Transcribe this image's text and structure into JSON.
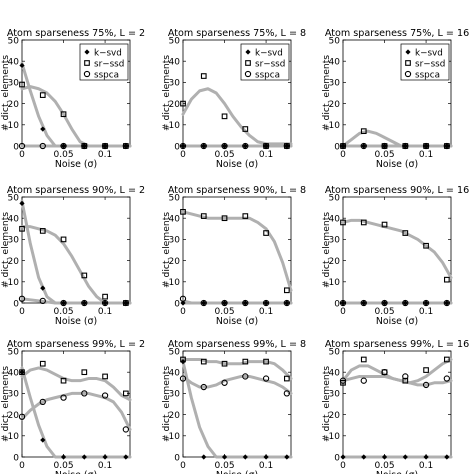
{
  "chart_data": [
    {
      "type": "line",
      "title": "Atom sparseness 75%, L = 2",
      "xlabel": "Noise (σ)",
      "ylabel": "# dict. elements",
      "xlim": [
        0,
        0.13
      ],
      "ylim": [
        0,
        50
      ],
      "grid": false,
      "legend_position": "top-right",
      "x": [
        0,
        0.025,
        0.05,
        0.075,
        0.1,
        0.125
      ],
      "series": [
        {
          "name": "k−svd",
          "marker": "diamond",
          "values": [
            38,
            8,
            0,
            0,
            0,
            0
          ],
          "fit": [
            39,
            26,
            14,
            5,
            0,
            0,
            0,
            0,
            0,
            0,
            0,
            0,
            0,
            0
          ]
        },
        {
          "name": "sr−ssd",
          "marker": "square",
          "values": [
            29,
            24,
            15,
            0,
            0,
            0
          ],
          "fit": [
            27,
            28,
            27,
            25,
            21,
            15,
            8,
            2,
            0,
            0,
            0,
            0,
            0,
            0
          ]
        },
        {
          "name": "sspca",
          "marker": "circle",
          "values": [
            0,
            0,
            0,
            0,
            0,
            0
          ],
          "fit": [
            0,
            0,
            0,
            0,
            0,
            0,
            0,
            0,
            0,
            0,
            0,
            0,
            0,
            0
          ]
        }
      ]
    },
    {
      "type": "line",
      "title": "Atom sparseness 75%, L = 8",
      "xlabel": "Noise (σ)",
      "ylabel": "# dict. elements",
      "xlim": [
        0,
        0.13
      ],
      "ylim": [
        0,
        50
      ],
      "grid": false,
      "legend_position": "top-right",
      "x": [
        0,
        0.025,
        0.05,
        0.075,
        0.1,
        0.125
      ],
      "series": [
        {
          "name": "k−svd",
          "marker": "diamond",
          "values": [
            0,
            0,
            0,
            0,
            0,
            0
          ],
          "fit": [
            0,
            0,
            0,
            0,
            0,
            0,
            0,
            0,
            0,
            0,
            0,
            0,
            0,
            0
          ]
        },
        {
          "name": "sr−ssd",
          "marker": "square",
          "values": [
            20,
            33,
            14,
            8,
            0,
            0
          ],
          "fit": [
            15,
            22,
            26,
            27,
            25,
            20,
            14,
            9,
            5,
            2,
            1,
            1,
            1,
            1
          ]
        },
        {
          "name": "sspca",
          "marker": "circle",
          "values": [
            0,
            0,
            0,
            0,
            0,
            0
          ],
          "fit": [
            0,
            0,
            0,
            0,
            0,
            0,
            0,
            0,
            0,
            0,
            0,
            0,
            0,
            0
          ]
        }
      ]
    },
    {
      "type": "line",
      "title": "Atom sparseness 75%, L = 16",
      "xlabel": "Noise (σ)",
      "ylabel": "# dict. elements",
      "xlim": [
        0,
        0.13
      ],
      "ylim": [
        0,
        50
      ],
      "grid": false,
      "legend_position": "top-right",
      "x": [
        0,
        0.025,
        0.05,
        0.075,
        0.1,
        0.125
      ],
      "series": [
        {
          "name": "k−svd",
          "marker": "diamond",
          "values": [
            0,
            0,
            0,
            0,
            0,
            0
          ],
          "fit": [
            0,
            0,
            0,
            0,
            0,
            0,
            0,
            0,
            0,
            0,
            0,
            0,
            0,
            0
          ]
        },
        {
          "name": "sr−ssd",
          "marker": "square",
          "values": [
            0,
            7,
            0,
            0,
            0,
            0
          ],
          "fit": [
            0,
            3,
            6,
            7,
            6,
            4,
            2,
            0,
            0,
            0,
            0,
            0,
            0,
            0
          ]
        },
        {
          "name": "sspca",
          "marker": "circle",
          "values": [
            0,
            0,
            0,
            0,
            0,
            0
          ],
          "fit": [
            0,
            0,
            0,
            0,
            0,
            0,
            0,
            0,
            0,
            0,
            0,
            0,
            0,
            0
          ]
        }
      ]
    },
    {
      "type": "line",
      "title": "Atom sparseness 90%, L = 2",
      "xlabel": "Noise (σ)",
      "ylabel": "# dict. elements",
      "xlim": [
        0,
        0.13
      ],
      "ylim": [
        0,
        50
      ],
      "grid": false,
      "x": [
        0,
        0.025,
        0.05,
        0.075,
        0.1,
        0.125
      ],
      "series": [
        {
          "name": "k−svd",
          "marker": "diamond",
          "values": [
            47,
            7,
            0,
            0,
            0,
            0
          ],
          "fit": [
            48,
            28,
            12,
            3,
            0,
            0,
            0,
            0,
            0,
            0,
            0,
            0,
            0,
            0
          ]
        },
        {
          "name": "sr−ssd",
          "marker": "square",
          "values": [
            35,
            34,
            30,
            13,
            3,
            0
          ],
          "fit": [
            36,
            36,
            35,
            34,
            32,
            28,
            22,
            15,
            8,
            3,
            0,
            0,
            0,
            0
          ]
        },
        {
          "name": "sspca",
          "marker": "circle",
          "values": [
            2,
            1,
            0,
            0,
            0,
            0
          ],
          "fit": [
            2,
            1.5,
            1,
            0.5,
            0,
            0,
            0,
            0,
            0,
            0,
            0,
            0,
            0,
            0
          ]
        }
      ]
    },
    {
      "type": "line",
      "title": "Atom sparseness 90%, L = 8",
      "xlabel": "Noise (σ)",
      "ylabel": "# dict. elements",
      "xlim": [
        0,
        0.13
      ],
      "ylim": [
        0,
        50
      ],
      "grid": false,
      "x": [
        0,
        0.025,
        0.05,
        0.075,
        0.1,
        0.125
      ],
      "series": [
        {
          "name": "k−svd",
          "marker": "diamond",
          "values": [
            0,
            0,
            0,
            0,
            0,
            0
          ],
          "fit": [
            0,
            0,
            0,
            0,
            0,
            0,
            0,
            0,
            0,
            0,
            0,
            0,
            0,
            0
          ]
        },
        {
          "name": "sr−ssd",
          "marker": "square",
          "values": [
            43,
            41,
            40,
            41,
            33,
            6
          ],
          "fit": [
            43,
            42,
            41,
            40,
            40,
            40,
            40,
            40,
            40,
            38,
            35,
            29,
            19,
            6
          ]
        },
        {
          "name": "sspca",
          "marker": "circle",
          "values": [
            2,
            0,
            0,
            0,
            0,
            0
          ],
          "fit": [
            1,
            0,
            0,
            0,
            0,
            0,
            0,
            0,
            0,
            0,
            0,
            0,
            0,
            0
          ]
        }
      ]
    },
    {
      "type": "line",
      "title": "Atom sparseness 90%, L = 16",
      "xlabel": "Noise (σ)",
      "ylabel": "# dict. elements",
      "xlim": [
        0,
        0.13
      ],
      "ylim": [
        0,
        50
      ],
      "grid": false,
      "x": [
        0,
        0.025,
        0.05,
        0.075,
        0.1,
        0.125
      ],
      "series": [
        {
          "name": "k−svd",
          "marker": "diamond",
          "values": [
            0,
            0,
            0,
            0,
            0,
            0
          ],
          "fit": [
            0,
            0,
            0,
            0,
            0,
            0,
            0,
            0,
            0,
            0,
            0,
            0,
            0,
            0
          ]
        },
        {
          "name": "sr−ssd",
          "marker": "square",
          "values": [
            38,
            38,
            37,
            33,
            27,
            11
          ],
          "fit": [
            38,
            39,
            39,
            38,
            37,
            36,
            35,
            34,
            32,
            30,
            27,
            24,
            19,
            12
          ]
        },
        {
          "name": "sspca",
          "marker": "circle",
          "values": [
            0,
            0,
            0,
            0,
            0,
            0
          ],
          "fit": [
            0,
            0,
            0,
            0,
            0,
            0,
            0,
            0,
            0,
            0,
            0,
            0,
            0,
            0
          ]
        }
      ]
    },
    {
      "type": "line",
      "title": "Atom sparseness 99%, L = 2",
      "xlabel": "Noise (σ)",
      "ylabel": "# dict. elements",
      "xlim": [
        0,
        0.13
      ],
      "ylim": [
        0,
        50
      ],
      "grid": false,
      "x": [
        0,
        0.025,
        0.05,
        0.075,
        0.1,
        0.125
      ],
      "series": [
        {
          "name": "k−svd",
          "marker": "diamond",
          "values": [
            40,
            8,
            0,
            0,
            0,
            0
          ],
          "fit": [
            42,
            28,
            15,
            5,
            0,
            0,
            0,
            0,
            0,
            0,
            0,
            0,
            0,
            0
          ]
        },
        {
          "name": "sr−ssd",
          "marker": "square",
          "values": [
            40,
            44,
            36,
            40,
            38,
            30
          ],
          "fit": [
            38,
            41,
            42,
            41,
            39,
            37,
            36,
            36,
            37,
            37,
            36,
            33,
            29,
            27
          ]
        },
        {
          "name": "sspca",
          "marker": "circle",
          "values": [
            19,
            26,
            28,
            30,
            29,
            13
          ],
          "fit": [
            18,
            22,
            25,
            27,
            28,
            29,
            30,
            30,
            30,
            29,
            28,
            26,
            21,
            13
          ]
        }
      ]
    },
    {
      "type": "line",
      "title": "Atom sparseness 99%, L = 8",
      "xlabel": "Noise (σ)",
      "ylabel": "# dict. elements",
      "xlim": [
        0,
        0.13
      ],
      "ylim": [
        0,
        50
      ],
      "grid": false,
      "x": [
        0,
        0.025,
        0.05,
        0.075,
        0.1,
        0.125
      ],
      "series": [
        {
          "name": "k−svd",
          "marker": "diamond",
          "values": [
            45,
            0,
            0,
            0,
            0,
            0
          ],
          "fit": [
            45,
            28,
            14,
            5,
            0,
            0,
            0,
            0,
            0,
            0,
            0,
            0,
            0,
            0
          ]
        },
        {
          "name": "sr−ssd",
          "marker": "square",
          "values": [
            46,
            45,
            44,
            45,
            45,
            37
          ],
          "fit": [
            46,
            46,
            46,
            45,
            45,
            44,
            44,
            44,
            45,
            45,
            45,
            44,
            41,
            37
          ]
        },
        {
          "name": "sspca",
          "marker": "circle",
          "values": [
            37,
            33,
            35,
            38,
            37,
            30
          ],
          "fit": [
            38,
            35,
            33,
            33,
            34,
            36,
            37,
            38,
            38,
            37,
            36,
            35,
            33,
            30
          ]
        }
      ]
    },
    {
      "type": "line",
      "title": "Atom sparseness 99%, L = 16",
      "xlabel": "Noise (σ)",
      "ylabel": "# dict. elements",
      "xlim": [
        0,
        0.13
      ],
      "ylim": [
        0,
        50
      ],
      "grid": false,
      "x": [
        0,
        0.025,
        0.05,
        0.075,
        0.1,
        0.125
      ],
      "series": [
        {
          "name": "k−svd",
          "marker": "diamond",
          "values": [
            0,
            0,
            0,
            0,
            0,
            0
          ],
          "fit": [
            0,
            0,
            0,
            0,
            0,
            0,
            0,
            0,
            0,
            0,
            0,
            0,
            0,
            0
          ]
        },
        {
          "name": "sr−ssd",
          "marker": "square",
          "values": [
            35,
            46,
            40,
            36,
            41,
            46
          ],
          "fit": [
            36,
            41,
            43,
            43,
            41,
            39,
            37,
            36,
            35,
            36,
            38,
            41,
            44,
            46
          ]
        },
        {
          "name": "sspca",
          "marker": "circle",
          "values": [
            36,
            36,
            40,
            38,
            34,
            37
          ],
          "fit": [
            36,
            37,
            38,
            38,
            38,
            38,
            37,
            36,
            35,
            34,
            34,
            35,
            35,
            36
          ]
        }
      ]
    }
  ],
  "axis": {
    "x_ticks": [
      "0",
      "0.05",
      "0.1"
    ],
    "x_tick_values": [
      0,
      0.05,
      0.1
    ],
    "y_ticks": [
      "0",
      "10",
      "20",
      "30",
      "40",
      "50"
    ],
    "y_tick_values": [
      0,
      10,
      20,
      30,
      40,
      50
    ]
  },
  "style": {
    "fit_color": "#b0b0b0",
    "marker_color": "#000000"
  }
}
